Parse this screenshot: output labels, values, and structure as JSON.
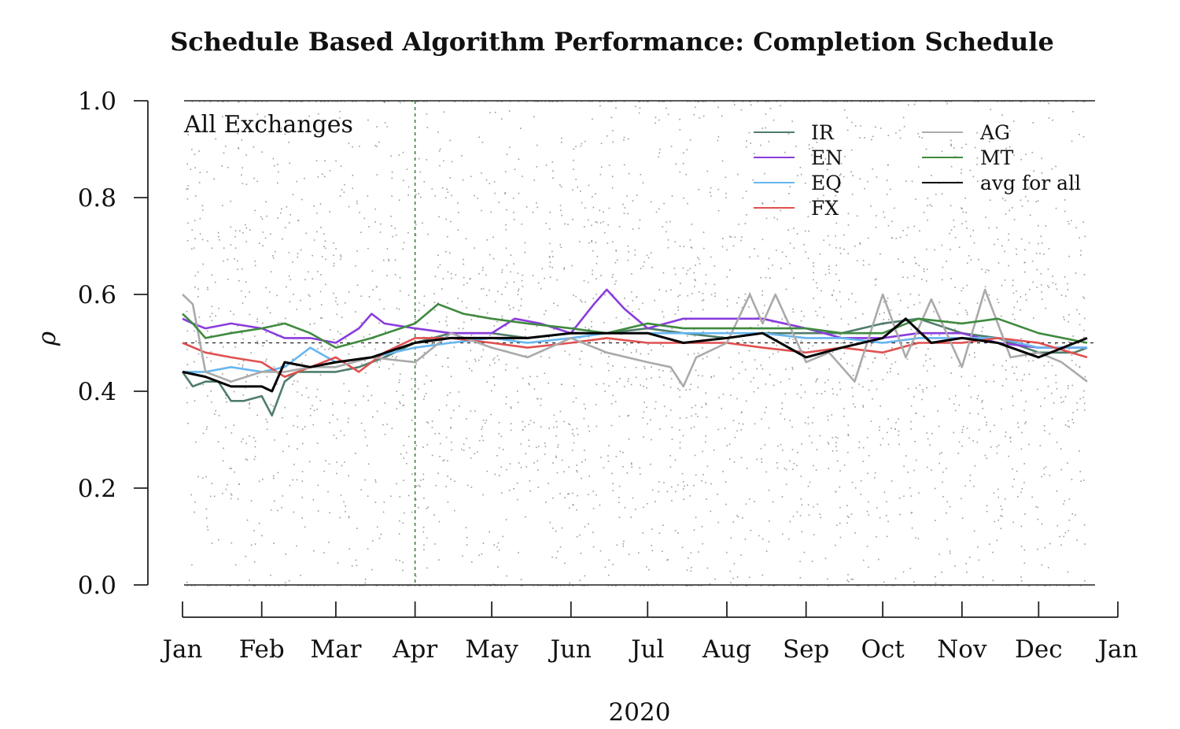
{
  "chart_data": {
    "type": "line",
    "title": "Schedule Based Algorithm Performance: Completion Schedule",
    "xlabel": "2020",
    "ylabel": "ρ",
    "annotation": "All Exchanges",
    "ylim": [
      0,
      1
    ],
    "yticks": [
      "0.0",
      "0.2",
      "0.4",
      "0.6",
      "0.8",
      "1.0"
    ],
    "ytick_values": [
      0,
      0.2,
      0.4,
      0.6,
      0.8,
      1.0
    ],
    "xticks": [
      "Jan",
      "Feb",
      "Mar",
      "Apr",
      "May",
      "Jun",
      "Jul",
      "Aug",
      "Sep",
      "Oct",
      "Nov",
      "Dec",
      "Jan"
    ],
    "xtick_values": [
      "2020-01-01",
      "2020-02-01",
      "2020-03-01",
      "2020-04-01",
      "2020-05-01",
      "2020-06-01",
      "2020-07-01",
      "2020-08-01",
      "2020-09-01",
      "2020-10-01",
      "2020-11-01",
      "2020-12-01",
      "2021-01-01"
    ],
    "xlim": [
      "2020-01-01",
      "2021-01-01"
    ],
    "hline": 0.5,
    "vline": "2020-04-01",
    "grid": false,
    "legend_position": "top-right",
    "background_points": "grey scatter of individual order ρ values between 0 and 1",
    "series": [
      {
        "name": "IR",
        "color": "#4f7d6b",
        "x": [
          "2020-01-01",
          "2020-01-05",
          "2020-01-10",
          "2020-01-15",
          "2020-01-20",
          "2020-01-25",
          "2020-02-01",
          "2020-02-05",
          "2020-02-10",
          "2020-02-15",
          "2020-02-20",
          "2020-03-01",
          "2020-03-10",
          "2020-03-20",
          "2020-04-01",
          "2020-04-15",
          "2020-05-01",
          "2020-05-15",
          "2020-06-01",
          "2020-06-15",
          "2020-07-01",
          "2020-07-15",
          "2020-08-01",
          "2020-08-15",
          "2020-09-01",
          "2020-09-15",
          "2020-10-01",
          "2020-10-15",
          "2020-11-01",
          "2020-11-15",
          "2020-12-01",
          "2020-12-15",
          "2020-12-20"
        ],
        "y": [
          0.44,
          0.41,
          0.42,
          0.42,
          0.38,
          0.38,
          0.39,
          0.35,
          0.42,
          0.44,
          0.44,
          0.44,
          0.45,
          0.47,
          0.5,
          0.52,
          0.52,
          0.51,
          0.52,
          0.52,
          0.53,
          0.52,
          0.51,
          0.52,
          0.52,
          0.52,
          0.54,
          0.55,
          0.52,
          0.51,
          0.48,
          0.48,
          0.49
        ]
      },
      {
        "name": "EN",
        "color": "#8a3cdc",
        "x": [
          "2020-01-01",
          "2020-01-05",
          "2020-01-10",
          "2020-01-20",
          "2020-02-01",
          "2020-02-10",
          "2020-02-20",
          "2020-03-01",
          "2020-03-10",
          "2020-03-15",
          "2020-03-20",
          "2020-04-01",
          "2020-04-15",
          "2020-05-01",
          "2020-05-10",
          "2020-05-20",
          "2020-06-01",
          "2020-06-10",
          "2020-06-15",
          "2020-06-22",
          "2020-07-01",
          "2020-07-15",
          "2020-08-01",
          "2020-08-15",
          "2020-09-01",
          "2020-09-15",
          "2020-10-01",
          "2020-10-15",
          "2020-11-01",
          "2020-11-15",
          "2020-12-01",
          "2020-12-20"
        ],
        "y": [
          0.55,
          0.54,
          0.53,
          0.54,
          0.53,
          0.51,
          0.51,
          0.5,
          0.53,
          0.56,
          0.54,
          0.53,
          0.52,
          0.52,
          0.55,
          0.54,
          0.52,
          0.58,
          0.61,
          0.57,
          0.53,
          0.55,
          0.55,
          0.55,
          0.53,
          0.51,
          0.51,
          0.52,
          0.52,
          0.5,
          0.49,
          0.49
        ]
      },
      {
        "name": "EQ",
        "color": "#66b6f0",
        "x": [
          "2020-01-01",
          "2020-01-10",
          "2020-01-20",
          "2020-02-01",
          "2020-02-10",
          "2020-02-15",
          "2020-02-20",
          "2020-03-01",
          "2020-03-15",
          "2020-04-01",
          "2020-04-15",
          "2020-05-01",
          "2020-05-15",
          "2020-06-01",
          "2020-06-15",
          "2020-07-01",
          "2020-07-15",
          "2020-08-01",
          "2020-08-15",
          "2020-09-01",
          "2020-09-15",
          "2020-10-01",
          "2020-10-15",
          "2020-11-01",
          "2020-11-15",
          "2020-12-01",
          "2020-12-20"
        ],
        "y": [
          0.44,
          0.44,
          0.45,
          0.44,
          0.45,
          0.47,
          0.49,
          0.46,
          0.47,
          0.49,
          0.5,
          0.51,
          0.5,
          0.51,
          0.52,
          0.52,
          0.52,
          0.52,
          0.52,
          0.51,
          0.51,
          0.5,
          0.51,
          0.51,
          0.51,
          0.49,
          0.49
        ]
      },
      {
        "name": "FX",
        "color": "#e05050",
        "x": [
          "2020-01-01",
          "2020-01-10",
          "2020-01-20",
          "2020-02-01",
          "2020-02-10",
          "2020-02-20",
          "2020-03-01",
          "2020-03-10",
          "2020-03-20",
          "2020-04-01",
          "2020-04-15",
          "2020-05-01",
          "2020-05-15",
          "2020-06-01",
          "2020-06-15",
          "2020-07-01",
          "2020-07-15",
          "2020-08-01",
          "2020-08-15",
          "2020-09-01",
          "2020-09-15",
          "2020-10-01",
          "2020-10-15",
          "2020-11-01",
          "2020-11-15",
          "2020-12-01",
          "2020-12-20"
        ],
        "y": [
          0.5,
          0.48,
          0.47,
          0.46,
          0.43,
          0.45,
          0.47,
          0.44,
          0.48,
          0.51,
          0.51,
          0.5,
          0.49,
          0.5,
          0.51,
          0.5,
          0.5,
          0.5,
          0.49,
          0.48,
          0.49,
          0.48,
          0.5,
          0.5,
          0.51,
          0.5,
          0.47
        ]
      },
      {
        "name": "AG",
        "color": "#aaaaaa",
        "x": [
          "2020-01-01",
          "2020-01-05",
          "2020-01-10",
          "2020-01-20",
          "2020-02-01",
          "2020-02-10",
          "2020-02-20",
          "2020-03-01",
          "2020-03-15",
          "2020-04-01",
          "2020-04-15",
          "2020-05-01",
          "2020-05-15",
          "2020-06-01",
          "2020-06-15",
          "2020-07-01",
          "2020-07-10",
          "2020-07-15",
          "2020-07-20",
          "2020-08-01",
          "2020-08-10",
          "2020-08-15",
          "2020-08-20",
          "2020-09-01",
          "2020-09-10",
          "2020-09-20",
          "2020-10-01",
          "2020-10-10",
          "2020-10-20",
          "2020-11-01",
          "2020-11-10",
          "2020-11-20",
          "2020-12-01",
          "2020-12-10",
          "2020-12-20"
        ],
        "y": [
          0.6,
          0.58,
          0.44,
          0.42,
          0.44,
          0.44,
          0.45,
          0.45,
          0.47,
          0.46,
          0.52,
          0.49,
          0.47,
          0.51,
          0.48,
          0.46,
          0.45,
          0.41,
          0.47,
          0.5,
          0.6,
          0.54,
          0.6,
          0.46,
          0.48,
          0.42,
          0.6,
          0.47,
          0.59,
          0.45,
          0.61,
          0.47,
          0.48,
          0.46,
          0.42
        ]
      },
      {
        "name": "MT",
        "color": "#3f8a3f",
        "x": [
          "2020-01-01",
          "2020-01-05",
          "2020-01-10",
          "2020-01-20",
          "2020-02-01",
          "2020-02-10",
          "2020-02-20",
          "2020-03-01",
          "2020-03-15",
          "2020-04-01",
          "2020-04-10",
          "2020-04-20",
          "2020-05-01",
          "2020-05-15",
          "2020-06-01",
          "2020-06-15",
          "2020-07-01",
          "2020-07-15",
          "2020-08-01",
          "2020-08-15",
          "2020-09-01",
          "2020-09-15",
          "2020-10-01",
          "2020-10-15",
          "2020-11-01",
          "2020-11-15",
          "2020-12-01",
          "2020-12-20"
        ],
        "y": [
          0.56,
          0.54,
          0.51,
          0.52,
          0.53,
          0.54,
          0.52,
          0.49,
          0.51,
          0.54,
          0.58,
          0.56,
          0.55,
          0.54,
          0.53,
          0.52,
          0.54,
          0.53,
          0.53,
          0.53,
          0.53,
          0.52,
          0.52,
          0.55,
          0.54,
          0.55,
          0.52,
          0.5
        ]
      },
      {
        "name": "avg for all",
        "color": "#000000",
        "x": [
          "2020-01-01",
          "2020-01-10",
          "2020-01-20",
          "2020-02-01",
          "2020-02-05",
          "2020-02-10",
          "2020-02-20",
          "2020-03-01",
          "2020-03-15",
          "2020-04-01",
          "2020-04-15",
          "2020-05-01",
          "2020-05-15",
          "2020-06-01",
          "2020-06-15",
          "2020-07-01",
          "2020-07-15",
          "2020-08-01",
          "2020-08-15",
          "2020-09-01",
          "2020-09-15",
          "2020-10-01",
          "2020-10-10",
          "2020-10-20",
          "2020-11-01",
          "2020-11-15",
          "2020-12-01",
          "2020-12-20"
        ],
        "y": [
          0.44,
          0.43,
          0.41,
          0.41,
          0.4,
          0.46,
          0.45,
          0.46,
          0.47,
          0.5,
          0.51,
          0.51,
          0.51,
          0.52,
          0.52,
          0.52,
          0.5,
          0.51,
          0.52,
          0.47,
          0.49,
          0.51,
          0.55,
          0.5,
          0.51,
          0.5,
          0.47,
          0.51
        ]
      }
    ]
  }
}
